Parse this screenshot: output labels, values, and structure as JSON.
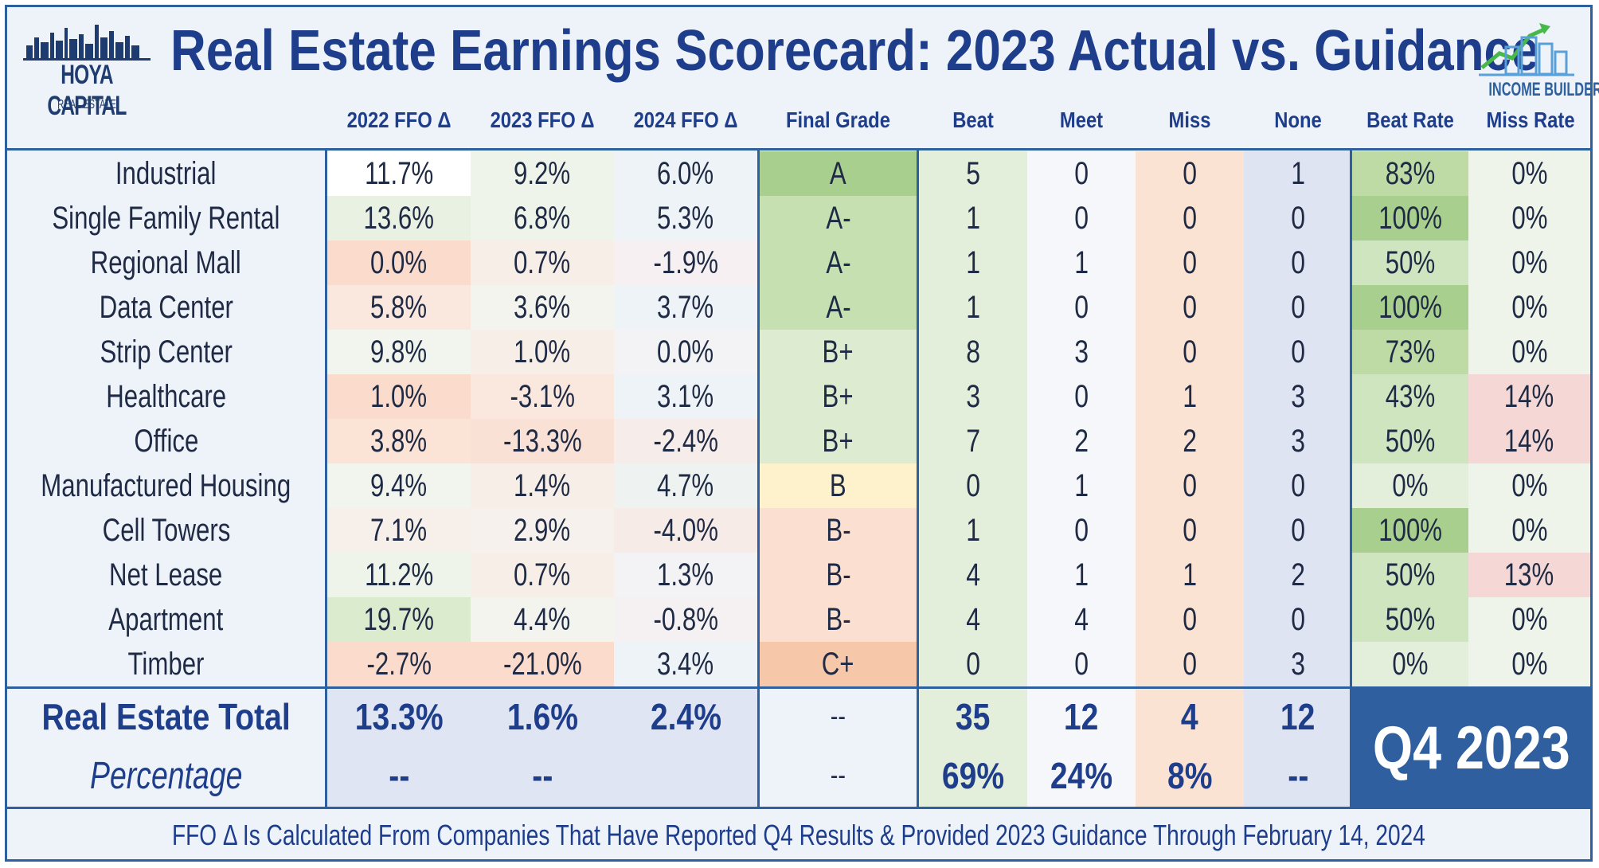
{
  "header": {
    "title": "Real Estate Earnings Scorecard: 2023 Actual vs. Guidance",
    "logo_left_brand": "HOYA CAPITAL",
    "logo_left_sub": "REAL ESTATE",
    "logo_right_text": "INCOME BUILDER"
  },
  "chart_data": {
    "type": "table",
    "title": "Real Estate Earnings Scorecard: 2023 Actual vs. Guidance",
    "columns": [
      "2022 FFO Δ",
      "2023 FFO Δ",
      "2024 FFO Δ",
      "Final Grade",
      "Beat",
      "Meet",
      "Miss",
      "None",
      "Beat Rate",
      "Miss Rate"
    ],
    "rows": [
      {
        "sector": "Industrial",
        "ffo2022": "11.7%",
        "ffo2023": "9.2%",
        "ffo2024": "6.0%",
        "grade": "A",
        "beat": "5",
        "meet": "0",
        "miss": "0",
        "none": "1",
        "beat_rate": "83%",
        "miss_rate": "0%"
      },
      {
        "sector": "Single Family Rental",
        "ffo2022": "13.6%",
        "ffo2023": "6.8%",
        "ffo2024": "5.3%",
        "grade": "A-",
        "beat": "1",
        "meet": "0",
        "miss": "0",
        "none": "0",
        "beat_rate": "100%",
        "miss_rate": "0%"
      },
      {
        "sector": "Regional Mall",
        "ffo2022": "0.0%",
        "ffo2023": "0.7%",
        "ffo2024": "-1.9%",
        "grade": "A-",
        "beat": "1",
        "meet": "1",
        "miss": "0",
        "none": "0",
        "beat_rate": "50%",
        "miss_rate": "0%"
      },
      {
        "sector": "Data Center",
        "ffo2022": "5.8%",
        "ffo2023": "3.6%",
        "ffo2024": "3.7%",
        "grade": "A-",
        "beat": "1",
        "meet": "0",
        "miss": "0",
        "none": "0",
        "beat_rate": "100%",
        "miss_rate": "0%"
      },
      {
        "sector": "Strip Center",
        "ffo2022": "9.8%",
        "ffo2023": "1.0%",
        "ffo2024": "0.0%",
        "grade": "B+",
        "beat": "8",
        "meet": "3",
        "miss": "0",
        "none": "0",
        "beat_rate": "73%",
        "miss_rate": "0%"
      },
      {
        "sector": "Healthcare",
        "ffo2022": "1.0%",
        "ffo2023": "-3.1%",
        "ffo2024": "3.1%",
        "grade": "B+",
        "beat": "3",
        "meet": "0",
        "miss": "1",
        "none": "3",
        "beat_rate": "43%",
        "miss_rate": "14%"
      },
      {
        "sector": "Office",
        "ffo2022": "3.8%",
        "ffo2023": "-13.3%",
        "ffo2024": "-2.4%",
        "grade": "B+",
        "beat": "7",
        "meet": "2",
        "miss": "2",
        "none": "3",
        "beat_rate": "50%",
        "miss_rate": "14%"
      },
      {
        "sector": "Manufactured Housing",
        "ffo2022": "9.4%",
        "ffo2023": "1.4%",
        "ffo2024": "4.7%",
        "grade": "B",
        "beat": "0",
        "meet": "1",
        "miss": "0",
        "none": "0",
        "beat_rate": "0%",
        "miss_rate": "0%"
      },
      {
        "sector": "Cell Towers",
        "ffo2022": "7.1%",
        "ffo2023": "2.9%",
        "ffo2024": "-4.0%",
        "grade": "B-",
        "beat": "1",
        "meet": "0",
        "miss": "0",
        "none": "0",
        "beat_rate": "100%",
        "miss_rate": "0%"
      },
      {
        "sector": "Net Lease",
        "ffo2022": "11.2%",
        "ffo2023": "0.7%",
        "ffo2024": "1.3%",
        "grade": "B-",
        "beat": "4",
        "meet": "1",
        "miss": "1",
        "none": "2",
        "beat_rate": "50%",
        "miss_rate": "13%"
      },
      {
        "sector": "Apartment",
        "ffo2022": "19.7%",
        "ffo2023": "4.4%",
        "ffo2024": "-0.8%",
        "grade": "B-",
        "beat": "4",
        "meet": "4",
        "miss": "0",
        "none": "0",
        "beat_rate": "50%",
        "miss_rate": "0%"
      },
      {
        "sector": "Timber",
        "ffo2022": "-2.7%",
        "ffo2023": "-21.0%",
        "ffo2024": "3.4%",
        "grade": "C+",
        "beat": "0",
        "meet": "0",
        "miss": "0",
        "none": "3",
        "beat_rate": "0%",
        "miss_rate": "0%"
      }
    ],
    "total": {
      "label": "Real Estate Total",
      "ffo2022": "13.3%",
      "ffo2023": "1.6%",
      "ffo2024": "2.4%",
      "grade": "--",
      "beat": "35",
      "meet": "12",
      "miss": "4",
      "none": "12"
    },
    "percentage": {
      "label": "Percentage",
      "ffo2022": "--",
      "ffo2023": "--",
      "ffo2024": "",
      "grade": "--",
      "beat": "69%",
      "meet": "24%",
      "miss": "8%",
      "none": "--"
    },
    "period_badge": "Q4 2023"
  },
  "footer": {
    "note": "FFO Δ Is Calculated From Companies That Have Reported Q4 Results & Provided 2023 Guidance Through February 14, 2024"
  },
  "colors": {
    "frame": "#2e5f9e",
    "title": "#1e3e8c",
    "badge": "#2f5f9f"
  }
}
